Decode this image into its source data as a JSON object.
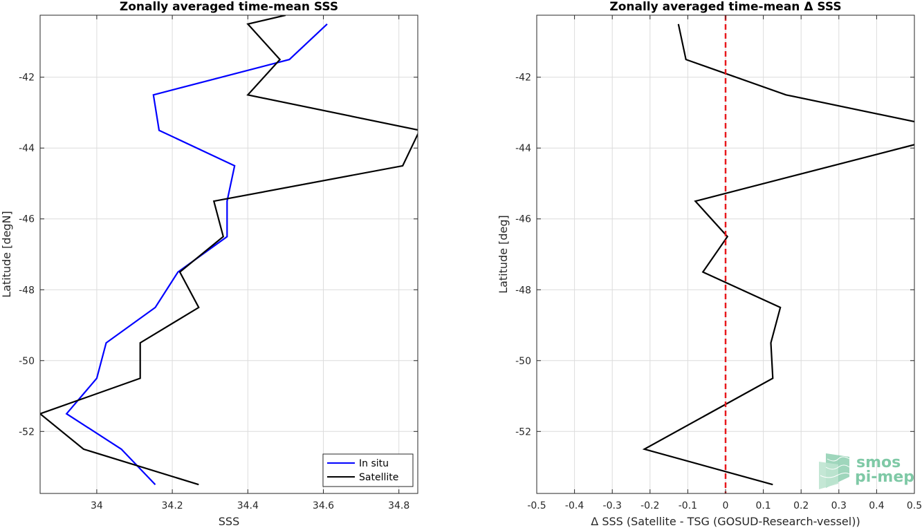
{
  "chart_data": [
    {
      "type": "line",
      "title": "Zonally averaged time-mean SSS",
      "xlabel": "SSS",
      "ylabel": "Latitude [degN]",
      "xlim": [
        33.85,
        34.85
      ],
      "ylim": [
        -53.75,
        -40.25
      ],
      "xticks": [
        34,
        34.2,
        34.4,
        34.6,
        34.8
      ],
      "xtick_labels": [
        "34",
        "34.2",
        "34.4",
        "34.6",
        "34.8"
      ],
      "yticks": [
        -42,
        -44,
        -46,
        -48,
        -50,
        -52
      ],
      "ytick_labels": [
        "-42",
        "-44",
        "-46",
        "-48",
        "-50",
        "-52"
      ],
      "grid": true,
      "legend_position": "bottom-right",
      "series": [
        {
          "name": "In situ",
          "color": "#0000ff",
          "points": [
            [
              34.61,
              -40.5
            ],
            [
              34.51,
              -41.5
            ],
            [
              34.15,
              -42.5
            ],
            [
              34.165,
              -43.5
            ],
            [
              34.365,
              -44.5
            ],
            [
              34.345,
              -45.5
            ],
            [
              34.345,
              -46.5
            ],
            [
              34.215,
              -47.5
            ],
            [
              34.155,
              -48.5
            ],
            [
              34.025,
              -49.5
            ],
            [
              34.0,
              -50.5
            ],
            [
              33.92,
              -51.5
            ],
            [
              34.065,
              -52.5
            ],
            [
              34.155,
              -53.5
            ]
          ]
        },
        {
          "name": "Satellite",
          "color": "#000000",
          "points": [
            [
              34.5,
              -40.25
            ],
            [
              34.4,
              -40.5
            ],
            [
              34.485,
              -41.5
            ],
            [
              34.4,
              -42.5
            ],
            [
              34.855,
              -43.5
            ],
            [
              34.81,
              -44.5
            ],
            [
              34.31,
              -45.5
            ],
            [
              34.335,
              -46.5
            ],
            [
              34.22,
              -47.5
            ],
            [
              34.27,
              -48.5
            ],
            [
              34.115,
              -49.5
            ],
            [
              34.115,
              -50.5
            ],
            [
              33.85,
              -51.5
            ],
            [
              33.965,
              -52.5
            ],
            [
              34.27,
              -53.5
            ]
          ]
        }
      ]
    },
    {
      "type": "line",
      "title": "Zonally averaged time-mean Δ SSS",
      "xlabel": "Δ SSS (Satellite - TSG (GOSUD-Research-vessel))",
      "ylabel": "Latitude [deg]",
      "xlim": [
        -0.5,
        0.5
      ],
      "ylim": [
        -53.75,
        -40.25
      ],
      "xticks": [
        -0.5,
        -0.4,
        -0.3,
        -0.2,
        -0.1,
        0,
        0.1,
        0.2,
        0.3,
        0.4,
        0.5
      ],
      "xtick_labels": [
        "-0.5",
        "-0.4",
        "-0.3",
        "-0.2",
        "-0.1",
        "0",
        "0.1",
        "0.2",
        "0.3",
        "0.4",
        "0.5"
      ],
      "yticks": [
        -42,
        -44,
        -46,
        -48,
        -50,
        -52
      ],
      "ytick_labels": [
        "-42",
        "-44",
        "-46",
        "-48",
        "-50",
        "-52"
      ],
      "grid": true,
      "series": [
        {
          "color": "#000000",
          "points": [
            [
              -0.125,
              -40.5
            ],
            [
              -0.105,
              -41.5
            ],
            [
              0.16,
              -42.5
            ],
            [
              0.52,
              -43.3
            ],
            [
              0.52,
              -43.85
            ],
            [
              -0.08,
              -45.5
            ],
            [
              0.005,
              -46.5
            ],
            [
              -0.06,
              -47.5
            ],
            [
              0.145,
              -48.5
            ],
            [
              0.12,
              -49.5
            ],
            [
              0.125,
              -50.5
            ],
            [
              -0.215,
              -52.5
            ],
            [
              0.125,
              -53.5
            ]
          ]
        }
      ],
      "reference_line": {
        "x": 0,
        "color": "#e8191d",
        "style": "dashed"
      }
    }
  ],
  "logo": {
    "text_line1": "smos",
    "text_line2": "pi-mep"
  }
}
